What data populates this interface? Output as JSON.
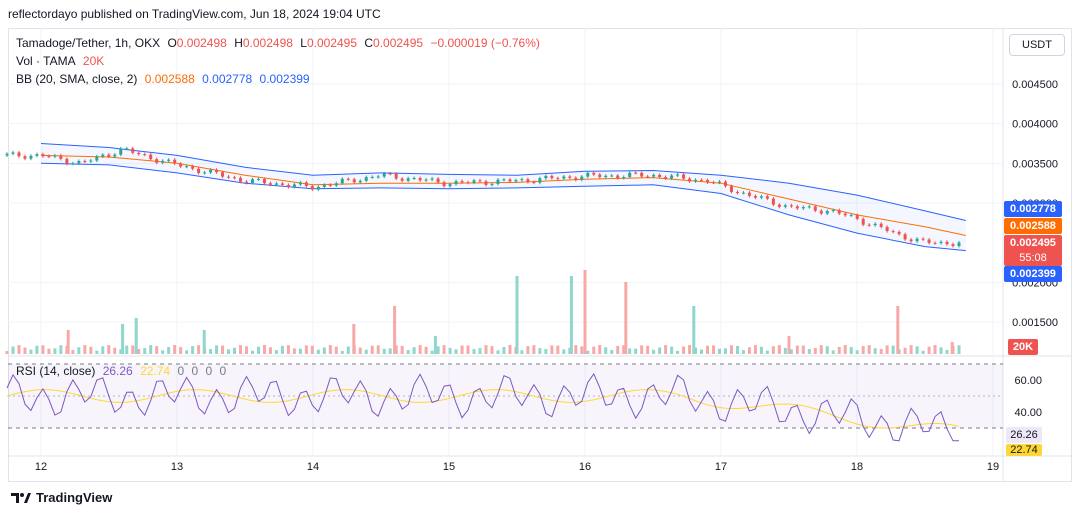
{
  "publisher": "reflectordayo published on TradingView.com, Jun 18, 2024 19:04 UTC",
  "legend": {
    "symbol": "Tamadoge/Tether, 1h, OKX",
    "o_label": "O",
    "o": "0.002498",
    "h_label": "H",
    "h": "0.002498",
    "l_label": "L",
    "l": "0.002495",
    "c_label": "C",
    "c": "0.002495",
    "change": "−0.000019 (−0.76%)",
    "vol_label": "Vol · TAMA",
    "vol": "20K",
    "bb_label": "BB (20, SMA, close, 2)",
    "bb_basis": "0.002588",
    "bb_upper": "0.002778",
    "bb_lower": "0.002399"
  },
  "currency_button": "USDT",
  "brand": "TradingView",
  "price_tags": {
    "upper": "0.002778",
    "basis": "0.002588",
    "last": "0.002495",
    "countdown": "55:08",
    "lower": "0.002399",
    "volume": "20K"
  },
  "rsi": {
    "label": "RSI (14, close)",
    "value": "26.26",
    "ma_value": "22.74",
    "zeros": [
      "0",
      "0",
      "0",
      "0"
    ],
    "ticks": [
      "60.00",
      "40.00"
    ],
    "tag_value": "26.26",
    "tag_ma": "22.74"
  },
  "colors": {
    "up": "#26a69a",
    "down": "#ef5350",
    "bb_upper": "#2962ff",
    "bb_basis": "#ff6d00",
    "bb_lower": "#2962ff",
    "rsi_line": "#7e57c2",
    "rsi_ma": "#fdd835",
    "vol_up": "#8fd6cc",
    "vol_down": "#f7a9a7"
  },
  "chart_data": {
    "type": "candlestick",
    "title": "Tamadoge/Tether, 1h, OKX",
    "price_axis_ticks": [
      "0.004500",
      "0.004000",
      "0.003500",
      "0.003000",
      "0.002000",
      "0.001500"
    ],
    "x_axis_ticks": [
      "12",
      "13",
      "14",
      "15",
      "16",
      "17",
      "18",
      "19"
    ],
    "price_range": [
      0.0012,
      0.0049
    ],
    "series": [
      {
        "name": "BB upper",
        "x": [
          12,
          12.5,
          13,
          13.5,
          14,
          14.5,
          15,
          15.5,
          16,
          16.5,
          17,
          17.5,
          18,
          18.5,
          18.8
        ],
        "values": [
          0.00375,
          0.0037,
          0.0036,
          0.00345,
          0.00335,
          0.00338,
          0.00336,
          0.00335,
          0.0034,
          0.00341,
          0.00335,
          0.00325,
          0.0031,
          0.0029,
          0.00278
        ]
      },
      {
        "name": "BB basis",
        "x": [
          12,
          12.5,
          13,
          13.5,
          14,
          14.5,
          15,
          15.5,
          16,
          16.5,
          17,
          17.5,
          18,
          18.5,
          18.8
        ],
        "values": [
          0.0036,
          0.00358,
          0.0035,
          0.00335,
          0.00323,
          0.00325,
          0.00325,
          0.00326,
          0.0033,
          0.00332,
          0.00325,
          0.00305,
          0.00285,
          0.0027,
          0.00259
        ]
      },
      {
        "name": "BB lower",
        "x": [
          12,
          12.5,
          13,
          13.5,
          14,
          14.5,
          15,
          15.5,
          16,
          16.5,
          17,
          17.5,
          18,
          18.5,
          18.8
        ],
        "values": [
          0.0035,
          0.00348,
          0.00338,
          0.00325,
          0.00318,
          0.00319,
          0.00318,
          0.00319,
          0.00321,
          0.00323,
          0.00312,
          0.00285,
          0.00262,
          0.00245,
          0.0024
        ]
      },
      {
        "name": "Close",
        "x": [
          12,
          12.3,
          12.6,
          12.7,
          13,
          13.5,
          14,
          14.5,
          15,
          15.5,
          16,
          16.5,
          16.9,
          17.2,
          17.5,
          17.8,
          18,
          18.3,
          18.5,
          18.8
        ],
        "values": [
          0.0036,
          0.0035,
          0.00368,
          0.00362,
          0.00348,
          0.00328,
          0.0032,
          0.00335,
          0.00325,
          0.00328,
          0.00334,
          0.00335,
          0.00328,
          0.0031,
          0.00295,
          0.0029,
          0.0028,
          0.0026,
          0.0025,
          0.002495
        ]
      }
    ],
    "volume_bars": [
      {
        "x": 12.2,
        "v": 4,
        "dir": "down"
      },
      {
        "x": 12.6,
        "v": 5,
        "dir": "up"
      },
      {
        "x": 12.7,
        "v": 6,
        "dir": "up"
      },
      {
        "x": 13.2,
        "v": 4,
        "dir": "up"
      },
      {
        "x": 14.3,
        "v": 5,
        "dir": "down"
      },
      {
        "x": 14.6,
        "v": 8,
        "dir": "down"
      },
      {
        "x": 14.9,
        "v": 3,
        "dir": "up"
      },
      {
        "x": 15.5,
        "v": 13,
        "dir": "up"
      },
      {
        "x": 15.9,
        "v": 13,
        "dir": "up"
      },
      {
        "x": 16.0,
        "v": 14,
        "dir": "down"
      },
      {
        "x": 16.3,
        "v": 12,
        "dir": "down"
      },
      {
        "x": 16.8,
        "v": 8,
        "dir": "up"
      },
      {
        "x": 17.5,
        "v": 3,
        "dir": "down"
      },
      {
        "x": 18.3,
        "v": 8,
        "dir": "down"
      },
      {
        "x": 18.7,
        "v": 2,
        "dir": "down"
      }
    ]
  }
}
